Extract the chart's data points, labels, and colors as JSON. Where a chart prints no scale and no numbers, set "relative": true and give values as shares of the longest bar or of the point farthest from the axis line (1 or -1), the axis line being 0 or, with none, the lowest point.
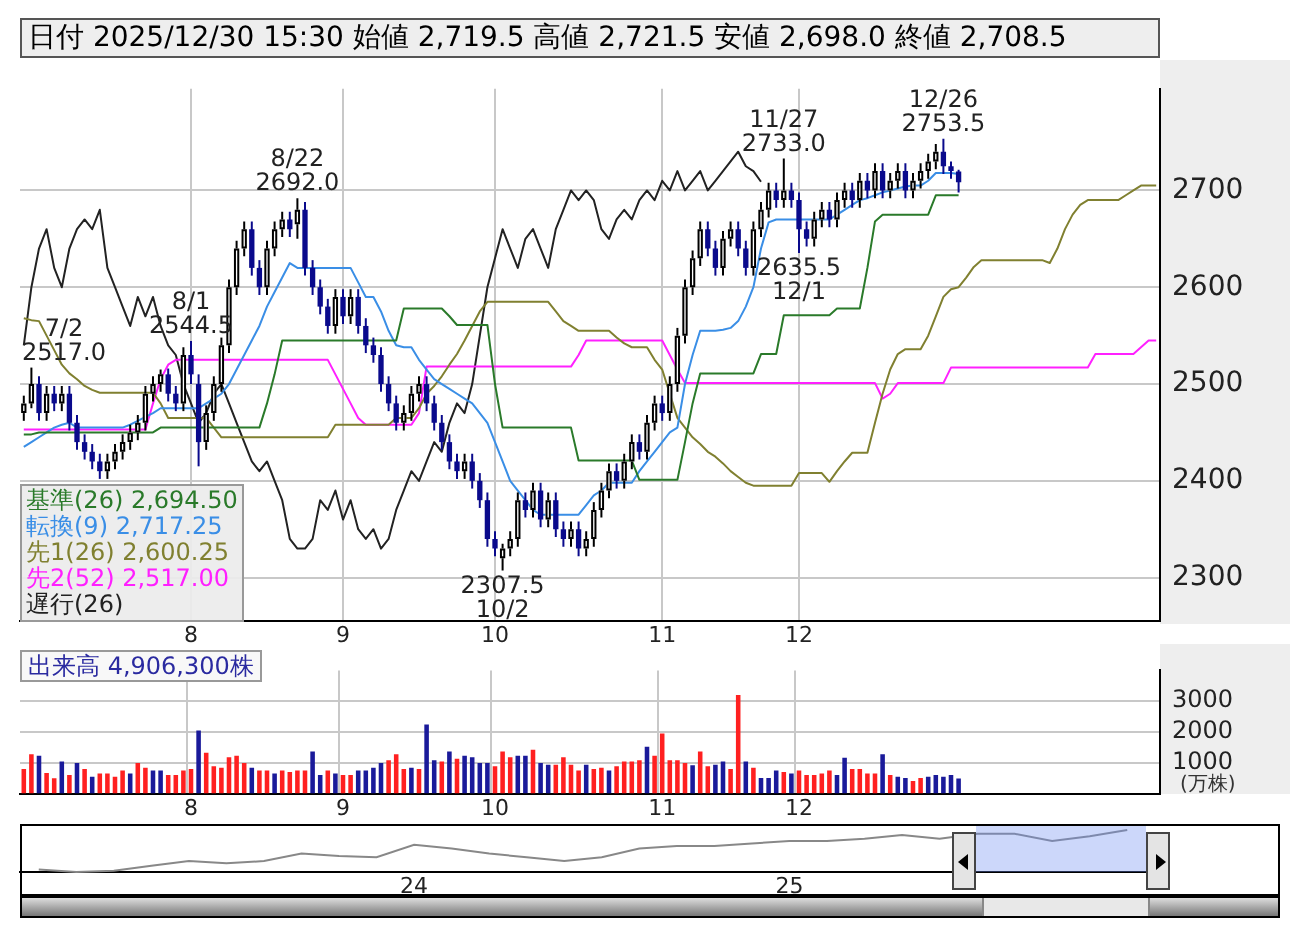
{
  "chart_data": [
    {
      "type": "candlestick",
      "title": "日付 2025/12/30 15:30 始値 2,719.5 高値 2,721.5 安値 2,698.0 終値 2,708.5",
      "categories": [
        null,
        null,
        null,
        null,
        null,
        null,
        null,
        null,
        null,
        null,
        null,
        null,
        null,
        null,
        null,
        null,
        null,
        null,
        null,
        null,
        null,
        null,
        "8",
        null,
        null,
        null,
        null,
        null,
        null,
        null,
        null,
        null,
        null,
        null,
        null,
        null,
        null,
        null,
        null,
        null,
        null,
        null,
        "9",
        null,
        null,
        null,
        null,
        null,
        null,
        null,
        null,
        null,
        null,
        null,
        null,
        null,
        null,
        null,
        null,
        null,
        null,
        null,
        "10",
        null,
        null,
        null,
        null,
        null,
        null,
        null,
        null,
        null,
        null,
        null,
        null,
        null,
        null,
        null,
        null,
        null,
        null,
        null,
        null,
        null,
        "11",
        null,
        null,
        null,
        null,
        null,
        null,
        null,
        null,
        null,
        null,
        null,
        null,
        null,
        null,
        null,
        null,
        null,
        "12",
        null,
        null,
        null,
        null,
        null,
        null,
        null,
        null,
        null,
        null,
        null,
        null,
        null,
        null,
        null,
        null,
        null,
        null,
        null,
        null,
        null,
        null,
        null,
        null,
        null,
        null,
        null,
        null,
        null,
        null,
        null,
        null,
        null,
        null,
        null,
        null,
        null,
        null,
        null,
        null,
        null,
        null,
        null,
        null,
        null,
        null,
        null
      ],
      "colors": [
        "#ffffff",
        "#ffffff",
        "#0a0a8c",
        "#ffffff",
        "#0a0a8c",
        "#ffffff",
        "#0a0a8c",
        "#0a0a8c",
        "#0a0a8c",
        "#0a0a8c",
        "#0a0a8c",
        "#ffffff",
        "#ffffff",
        "#ffffff",
        "#ffffff",
        "#ffffff",
        "#ffffff",
        "#ffffff",
        "#ffffff",
        "#0a0a8c",
        "#0a0a8c",
        "#ffffff",
        "#0a0a8c",
        "#0a0a8c",
        "#ffffff",
        "#ffffff",
        "#ffffff",
        "#ffffff",
        "#ffffff",
        "#ffffff",
        "#0a0a8c",
        "#0a0a8c",
        "#ffffff",
        "#ffffff",
        "#ffffff",
        "#0a0a8c",
        "#ffffff",
        "#0a0a8c",
        "#0a0a8c",
        "#0a0a8c",
        "#0a0a8c",
        "#ffffff",
        "#0a0a8c",
        "#ffffff",
        "#0a0a8c",
        "#0a0a8c",
        "#0a0a8c",
        "#0a0a8c",
        "#0a0a8c",
        "#0a0a8c",
        "#ffffff",
        "#ffffff",
        "#ffffff",
        "#0a0a8c",
        "#0a0a8c",
        "#0a0a8c",
        "#0a0a8c",
        "#0a0a8c",
        "#ffffff",
        "#0a0a8c",
        "#0a0a8c",
        "#0a0a8c",
        "#0a0a8c",
        "#ffffff",
        "#ffffff",
        "#ffffff",
        "#0a0a8c",
        "#ffffff",
        "#0a0a8c",
        "#ffffff",
        "#0a0a8c",
        "#0a0a8c",
        "#ffffff",
        "#0a0a8c",
        "#ffffff",
        "#ffffff",
        "#ffffff",
        "#ffffff",
        "#0a0a8c",
        "#ffffff",
        "#ffffff",
        "#0a0a8c",
        "#ffffff",
        "#ffffff",
        "#0a0a8c",
        "#ffffff",
        "#ffffff",
        "#ffffff",
        "#ffffff",
        "#ffffff",
        "#0a0a8c",
        "#0a0a8c",
        "#ffffff",
        "#ffffff",
        "#0a0a8c",
        "#0a0a8c",
        "#ffffff",
        "#ffffff",
        "#ffffff",
        "#0a0a8c",
        "#ffffff",
        "#0a0a8c",
        "#0a0a8c",
        "#0a0a8c",
        "#ffffff",
        "#ffffff",
        "#0a0a8c",
        "#ffffff",
        "#ffffff",
        "#0a0a8c",
        "#ffffff",
        "#0a0a8c",
        "#ffffff",
        "#0a0a8c",
        "#ffffff",
        "#ffffff",
        "#0a0a8c",
        "#ffffff",
        "#ffffff",
        "#ffffff",
        "#ffffff",
        "#0a0a8c",
        "#0a0a8c",
        "#0a0a8c",
        null,
        null,
        null,
        null,
        null,
        null,
        null,
        null,
        null,
        null,
        null,
        null,
        null,
        null,
        null,
        null,
        null,
        null,
        null,
        null,
        null,
        null,
        null,
        null,
        null,
        null
      ],
      "ohlc": [
        [
          2470,
          2488,
          2462,
          2480
        ],
        [
          2480,
          2517,
          2475,
          2500
        ],
        [
          2500,
          2508,
          2462,
          2470
        ],
        [
          2470,
          2498,
          2462,
          2490
        ],
        [
          2490,
          2498,
          2472,
          2480
        ],
        [
          2480,
          2498,
          2472,
          2490
        ],
        [
          2490,
          2498,
          2452,
          2460
        ],
        [
          2460,
          2468,
          2432,
          2440
        ],
        [
          2440,
          2448,
          2422,
          2430
        ],
        [
          2430,
          2438,
          2412,
          2420
        ],
        [
          2420,
          2428,
          2402,
          2410
        ],
        [
          2410,
          2428,
          2402,
          2420
        ],
        [
          2420,
          2438,
          2412,
          2430
        ],
        [
          2430,
          2448,
          2422,
          2440
        ],
        [
          2440,
          2458,
          2432,
          2450
        ],
        [
          2450,
          2468,
          2442,
          2460
        ],
        [
          2460,
          2498,
          2452,
          2490
        ],
        [
          2490,
          2508,
          2482,
          2500
        ],
        [
          2500,
          2515,
          2492,
          2510
        ],
        [
          2510,
          2516,
          2482,
          2490
        ],
        [
          2490,
          2498,
          2472,
          2480
        ],
        [
          2480,
          2538,
          2472,
          2530
        ],
        [
          2530,
          2544.5,
          2500,
          2510
        ],
        [
          2500,
          2510,
          2415,
          2440
        ],
        [
          2440,
          2478,
          2432,
          2470
        ],
        [
          2470,
          2508,
          2462,
          2500
        ],
        [
          2500,
          2548,
          2492,
          2540
        ],
        [
          2540,
          2608,
          2532,
          2600
        ],
        [
          2600,
          2648,
          2592,
          2640
        ],
        [
          2640,
          2668,
          2632,
          2660
        ],
        [
          2660,
          2668,
          2612,
          2620
        ],
        [
          2620,
          2628,
          2592,
          2600
        ],
        [
          2600,
          2648,
          2592,
          2640
        ],
        [
          2640,
          2668,
          2632,
          2660
        ],
        [
          2660,
          2678,
          2652,
          2670
        ],
        [
          2670,
          2678,
          2652,
          2660
        ],
        [
          2665,
          2692,
          2650,
          2680
        ],
        [
          2680,
          2688,
          2612,
          2620
        ],
        [
          2620,
          2628,
          2592,
          2600
        ],
        [
          2600,
          2608,
          2572,
          2580
        ],
        [
          2580,
          2588,
          2552,
          2560
        ],
        [
          2560,
          2598,
          2552,
          2590
        ],
        [
          2590,
          2598,
          2562,
          2570
        ],
        [
          2570,
          2598,
          2562,
          2590
        ],
        [
          2590,
          2598,
          2552,
          2560
        ],
        [
          2560,
          2568,
          2532,
          2540
        ],
        [
          2540,
          2548,
          2522,
          2530
        ],
        [
          2530,
          2538,
          2492,
          2500
        ],
        [
          2500,
          2508,
          2472,
          2480
        ],
        [
          2480,
          2488,
          2452,
          2460
        ],
        [
          2460,
          2478,
          2452,
          2470
        ],
        [
          2470,
          2498,
          2462,
          2490
        ],
        [
          2490,
          2508,
          2482,
          2500
        ],
        [
          2500,
          2508,
          2472,
          2480
        ],
        [
          2480,
          2488,
          2452,
          2460
        ],
        [
          2460,
          2468,
          2432,
          2440
        ],
        [
          2440,
          2448,
          2412,
          2420
        ],
        [
          2420,
          2428,
          2402,
          2410
        ],
        [
          2410,
          2428,
          2402,
          2420
        ],
        [
          2420,
          2428,
          2392,
          2400
        ],
        [
          2400,
          2408,
          2372,
          2380
        ],
        [
          2380,
          2388,
          2332,
          2340
        ],
        [
          2340,
          2348,
          2322,
          2330
        ],
        [
          2320,
          2335,
          2307.5,
          2330
        ],
        [
          2330,
          2348,
          2322,
          2340
        ],
        [
          2340,
          2388,
          2332,
          2380
        ],
        [
          2380,
          2388,
          2362,
          2370
        ],
        [
          2370,
          2398,
          2362,
          2390
        ],
        [
          2390,
          2398,
          2352,
          2360
        ],
        [
          2360,
          2388,
          2352,
          2380
        ],
        [
          2380,
          2388,
          2342,
          2350
        ],
        [
          2350,
          2358,
          2332,
          2340
        ],
        [
          2340,
          2358,
          2332,
          2350
        ],
        [
          2350,
          2358,
          2322,
          2330
        ],
        [
          2330,
          2348,
          2322,
          2340
        ],
        [
          2340,
          2378,
          2332,
          2370
        ],
        [
          2370,
          2398,
          2362,
          2390
        ],
        [
          2390,
          2418,
          2382,
          2410
        ],
        [
          2410,
          2418,
          2392,
          2400
        ],
        [
          2400,
          2428,
          2392,
          2420
        ],
        [
          2420,
          2448,
          2412,
          2440
        ],
        [
          2440,
          2448,
          2422,
          2430
        ],
        [
          2430,
          2468,
          2422,
          2460
        ],
        [
          2460,
          2488,
          2452,
          2480
        ],
        [
          2480,
          2488,
          2462,
          2470
        ],
        [
          2470,
          2508,
          2462,
          2500
        ],
        [
          2500,
          2558,
          2492,
          2550
        ],
        [
          2550,
          2608,
          2542,
          2600
        ],
        [
          2600,
          2638,
          2592,
          2630
        ],
        [
          2630,
          2668,
          2622,
          2660
        ],
        [
          2660,
          2668,
          2632,
          2640
        ],
        [
          2640,
          2648,
          2612,
          2620
        ],
        [
          2620,
          2658,
          2612,
          2650
        ],
        [
          2650,
          2668,
          2642,
          2660
        ],
        [
          2660,
          2668,
          2632,
          2640
        ],
        [
          2640,
          2648,
          2612,
          2620
        ],
        [
          2620,
          2668,
          2612,
          2660
        ],
        [
          2660,
          2688,
          2652,
          2680
        ],
        [
          2680,
          2708,
          2672,
          2700
        ],
        [
          2700,
          2708,
          2682,
          2690
        ],
        [
          2690,
          2733,
          2682,
          2700
        ],
        [
          2700,
          2708,
          2682,
          2690
        ],
        [
          2690,
          2698,
          2635.5,
          2660
        ],
        [
          2660,
          2668,
          2642,
          2650
        ],
        [
          2650,
          2678,
          2642,
          2670
        ],
        [
          2670,
          2688,
          2662,
          2680
        ],
        [
          2680,
          2688,
          2662,
          2670
        ],
        [
          2670,
          2698,
          2662,
          2690
        ],
        [
          2690,
          2708,
          2682,
          2700
        ],
        [
          2700,
          2708,
          2682,
          2690
        ],
        [
          2690,
          2718,
          2682,
          2710
        ],
        [
          2710,
          2718,
          2692,
          2700
        ],
        [
          2700,
          2728,
          2692,
          2720
        ],
        [
          2720,
          2728,
          2692,
          2700
        ],
        [
          2700,
          2718,
          2692,
          2710
        ],
        [
          2710,
          2728,
          2702,
          2720
        ],
        [
          2720,
          2728,
          2692,
          2700
        ],
        [
          2700,
          2718,
          2692,
          2710
        ],
        [
          2710,
          2728,
          2702,
          2720
        ],
        [
          2720,
          2738,
          2712,
          2730
        ],
        [
          2730,
          2748,
          2722,
          2740
        ],
        [
          2740,
          2753.5,
          2717,
          2725
        ],
        [
          2725,
          2730,
          2712,
          2720
        ],
        [
          2719.5,
          2721.5,
          2698,
          2708.5
        ],
        null,
        null,
        null,
        null,
        null,
        null,
        null,
        null,
        null,
        null,
        null,
        null,
        null,
        null,
        null,
        null,
        null,
        null,
        null,
        null,
        null,
        null,
        null,
        null,
        null,
        null
      ],
      "series": [
        {
          "type": "line",
          "name": "基準(26) 2,694.50",
          "color": "#2a7a2a",
          "values": [
            2448,
            2448,
            2450,
            2450,
            2450,
            2450,
            2450,
            2450,
            2450,
            2450,
            2450,
            2450,
            2450,
            2450,
            2450,
            2450,
            2450,
            2450,
            2455,
            2455,
            2455,
            2455,
            2455,
            2455,
            2455,
            2455,
            2455,
            2455,
            2455,
            2455,
            2455,
            2455,
            2480,
            2510,
            2545,
            2545,
            2545,
            2545,
            2545,
            2545,
            2545,
            2545,
            2545,
            2545,
            2545,
            2545,
            2545,
            2545,
            2545,
            2545,
            2578,
            2578,
            2578,
            2578,
            2578,
            2578,
            2570,
            2561,
            2561,
            2561,
            2561,
            2561,
            2500,
            2455,
            2455,
            2455,
            2455,
            2455,
            2455,
            2455,
            2455,
            2455,
            2455,
            2421,
            2421,
            2421,
            2421,
            2421,
            2421,
            2421,
            2421,
            2401,
            2401,
            2401,
            2401,
            2401,
            2401,
            2440,
            2480,
            2511,
            2511,
            2511,
            2511,
            2511,
            2511,
            2511,
            2511,
            2531,
            2531,
            2531,
            2571,
            2571,
            2571,
            2571,
            2571,
            2571,
            2571,
            2578,
            2578,
            2578,
            2578,
            2620,
            2668,
            2675,
            2675,
            2675,
            2675,
            2675,
            2675,
            2675,
            2695,
            2695,
            2695,
            2695,
            null,
            null,
            null,
            null,
            null,
            null,
            null,
            null,
            null,
            null,
            null,
            null,
            null,
            null,
            null,
            null,
            null,
            null,
            null,
            null,
            null,
            null,
            null,
            null,
            null,
            null
          ]
        },
        {
          "type": "line",
          "name": "転換(9) 2,717.25",
          "color": "#3a8ee6",
          "values": [
            2435,
            2440,
            2445,
            2450,
            2455,
            2458,
            2460,
            2455,
            2455,
            2455,
            2455,
            2455,
            2455,
            2455,
            2458,
            2462,
            2466,
            2470,
            2475,
            2475,
            2475,
            2475,
            2475,
            2475,
            2480,
            2485,
            2490,
            2500,
            2515,
            2530,
            2545,
            2560,
            2580,
            2595,
            2610,
            2625,
            2620,
            2620,
            2620,
            2620,
            2620,
            2620,
            2620,
            2620,
            2605,
            2590,
            2590,
            2575,
            2555,
            2540,
            2538,
            2538,
            2525,
            2515,
            2505,
            2500,
            2495,
            2490,
            2485,
            2480,
            2470,
            2460,
            2440,
            2420,
            2400,
            2390,
            2380,
            2370,
            2365,
            2365,
            2365,
            2365,
            2365,
            2365,
            2375,
            2385,
            2390,
            2398,
            2398,
            2398,
            2398,
            2410,
            2420,
            2430,
            2440,
            2450,
            2455,
            2500,
            2530,
            2555,
            2555,
            2555,
            2556,
            2558,
            2565,
            2580,
            2600,
            2640,
            2667,
            2670,
            2670,
            2670,
            2670,
            2670,
            2670,
            2670,
            2670,
            2675,
            2680,
            2685,
            2690,
            2692,
            2695,
            2698,
            2700,
            2702,
            2704,
            2705,
            2705,
            2710,
            2718,
            2718,
            2718,
            2717,
            null,
            null,
            null,
            null,
            null,
            null,
            null,
            null,
            null,
            null,
            null,
            null,
            null,
            null,
            null,
            null,
            null,
            null,
            null,
            null,
            null,
            null,
            null,
            null,
            null,
            null
          ]
        },
        {
          "type": "line",
          "name": "先1(26) 2,600.25",
          "color": "#808030",
          "values": [
            2568,
            2566,
            2565,
            2550,
            2535,
            2520,
            2511,
            2505,
            2498,
            2494,
            2491,
            2491,
            2491,
            2491,
            2491,
            2491,
            2491,
            2491,
            2480,
            2465,
            2465,
            2465,
            2465,
            2465,
            2465,
            2455,
            2445,
            2445,
            2445,
            2445,
            2445,
            2445,
            2445,
            2445,
            2445,
            2445,
            2445,
            2445,
            2445,
            2445,
            2445,
            2458,
            2458,
            2458,
            2458,
            2458,
            2458,
            2458,
            2458,
            2465,
            2465,
            2465,
            2475,
            2490,
            2498,
            2508,
            2520,
            2531,
            2545,
            2560,
            2575,
            2585,
            2585,
            2585,
            2585,
            2585,
            2585,
            2585,
            2585,
            2585,
            2575,
            2565,
            2560,
            2555,
            2555,
            2555,
            2555,
            2555,
            2548,
            2542,
            2538,
            2538,
            2538,
            2525,
            2515,
            2490,
            2465,
            2455,
            2445,
            2438,
            2430,
            2425,
            2418,
            2410,
            2404,
            2398,
            2395,
            2395,
            2395,
            2395,
            2395,
            2395,
            2408,
            2408,
            2408,
            2408,
            2399,
            2410,
            2420,
            2429,
            2429,
            2429,
            2460,
            2490,
            2515,
            2531,
            2536,
            2536,
            2536,
            2550,
            2570,
            2590,
            2598,
            2600,
            2610,
            2621,
            2628,
            2628,
            2628,
            2628,
            2628,
            2628,
            2628,
            2628,
            2628,
            2625,
            2640,
            2660,
            2675,
            2685,
            2690,
            2690,
            2690,
            2690,
            2690,
            2695,
            2700,
            2705,
            2705,
            2705
          ]
        },
        {
          "type": "line",
          "name": "先2(52) 2,517.00",
          "color": "#ff20ff",
          "values": [
            2453,
            2453,
            2453,
            2453,
            2453,
            2453,
            2453,
            2453,
            2453,
            2453,
            2453,
            2453,
            2453,
            2453,
            2453,
            2453,
            2453,
            2480,
            2505,
            2520,
            2525,
            2525,
            2525,
            2525,
            2525,
            2525,
            2525,
            2525,
            2525,
            2525,
            2525,
            2525,
            2525,
            2525,
            2525,
            2525,
            2525,
            2525,
            2525,
            2525,
            2525,
            2510,
            2495,
            2480,
            2465,
            2458,
            2458,
            2458,
            2458,
            2458,
            2458,
            2458,
            2470,
            2518,
            2518,
            2518,
            2518,
            2518,
            2518,
            2518,
            2518,
            2518,
            2518,
            2518,
            2518,
            2518,
            2518,
            2518,
            2518,
            2518,
            2518,
            2518,
            2518,
            2530,
            2545,
            2545,
            2545,
            2545,
            2545,
            2545,
            2545,
            2545,
            2545,
            2545,
            2545,
            2530,
            2515,
            2501,
            2501,
            2501,
            2501,
            2501,
            2501,
            2501,
            2501,
            2501,
            2501,
            2501,
            2501,
            2501,
            2501,
            2501,
            2501,
            2501,
            2501,
            2501,
            2501,
            2501,
            2501,
            2501,
            2501,
            2501,
            2501,
            2485,
            2490,
            2501,
            2501,
            2501,
            2501,
            2501,
            2501,
            2501,
            2517,
            2517,
            2517,
            2517,
            2517,
            2517,
            2517,
            2517,
            2517,
            2517,
            2517,
            2517,
            2517,
            2517,
            2517,
            2517,
            2517,
            2517,
            2517,
            2531,
            2531,
            2531,
            2531,
            2531,
            2531,
            2538,
            2545,
            2545
          ]
        },
        {
          "type": "line",
          "name": "遅行(26)",
          "color": "#222222",
          "values": [
            2540,
            2600,
            2640,
            2660,
            2620,
            2600,
            2640,
            2660,
            2670,
            2660,
            2680,
            2620,
            2600,
            2580,
            2560,
            2590,
            2570,
            2590,
            2560,
            2540,
            2530,
            2500,
            2480,
            2460,
            2470,
            2490,
            2500,
            2480,
            2460,
            2440,
            2420,
            2410,
            2420,
            2400,
            2380,
            2340,
            2330,
            2330,
            2340,
            2380,
            2370,
            2390,
            2360,
            2380,
            2350,
            2340,
            2350,
            2330,
            2340,
            2370,
            2390,
            2410,
            2400,
            2420,
            2440,
            2430,
            2460,
            2480,
            2470,
            2500,
            2550,
            2600,
            2630,
            2660,
            2640,
            2620,
            2650,
            2660,
            2640,
            2620,
            2660,
            2680,
            2700,
            2690,
            2700,
            2690,
            2660,
            2650,
            2670,
            2680,
            2670,
            2690,
            2700,
            2690,
            2710,
            2700,
            2720,
            2700,
            2710,
            2720,
            2700,
            2710,
            2720,
            2730,
            2740,
            2725,
            2720,
            2709,
            null,
            null,
            null,
            null,
            null,
            null,
            null,
            null,
            null,
            null,
            null,
            null,
            null,
            null,
            null,
            null,
            null,
            null,
            null,
            null,
            null,
            null,
            null,
            null,
            null,
            null,
            null,
            null,
            null,
            null,
            null,
            null,
            null,
            null,
            null,
            null,
            null,
            null,
            null,
            null,
            null,
            null,
            null,
            null,
            null,
            null,
            null,
            null,
            null,
            null,
            null,
            null
          ]
        }
      ],
      "ylim": [
        2255,
        2805
      ],
      "yticks": [
        2300,
        2400,
        2500,
        2600,
        2700
      ],
      "grid": true,
      "legend": "bottom left",
      "annotations": [
        {
          "text": "7/2\n2517.0",
          "y": 2517
        },
        {
          "text": "8/1\n2544.5",
          "y": 2544.5
        },
        {
          "text": "8/22\n2692.0",
          "y": 2692
        },
        {
          "text": "2307.5\n10/2",
          "y": 2307.5
        },
        {
          "text": "11/27\n2733.0",
          "y": 2733
        },
        {
          "text": "2635.5\n12/1",
          "y": 2635.5
        },
        {
          "text": "12/26\n2753.5",
          "y": 2753.5
        }
      ]
    },
    {
      "type": "bar",
      "title": "出来高 4,906,300株",
      "ylabel": "(万株)",
      "categories": [
        null,
        null,
        null,
        null,
        null,
        null,
        null,
        null,
        null,
        null,
        null,
        null,
        null,
        null,
        null,
        null,
        null,
        null,
        null,
        null,
        null,
        null,
        "8",
        null,
        null,
        null,
        null,
        null,
        null,
        null,
        null,
        null,
        null,
        null,
        null,
        null,
        null,
        null,
        null,
        null,
        null,
        null,
        "9",
        null,
        null,
        null,
        null,
        null,
        null,
        null,
        null,
        null,
        null,
        null,
        null,
        null,
        null,
        null,
        null,
        null,
        null,
        null,
        "10",
        null,
        null,
        null,
        null,
        null,
        null,
        null,
        null,
        null,
        null,
        null,
        null,
        null,
        null,
        null,
        null,
        null,
        null,
        null,
        null,
        null,
        "11",
        null,
        null,
        null,
        null,
        null,
        null,
        null,
        null,
        null,
        null,
        null,
        null,
        null,
        null,
        null,
        null,
        null,
        "12",
        null,
        null,
        null,
        null,
        null,
        null,
        null,
        null,
        null,
        null,
        null,
        null,
        null,
        null,
        null,
        null,
        null,
        null,
        null,
        null,
        null,
        null,
        null,
        null,
        null,
        null,
        null,
        null,
        null,
        null,
        null,
        null,
        null,
        null,
        null,
        null,
        null,
        null,
        null,
        null,
        null,
        null,
        null,
        null,
        null,
        null,
        null
      ],
      "values": [
        800,
        1280,
        1230,
        670,
        500,
        1040,
        600,
        990,
        800,
        550,
        650,
        650,
        550,
        750,
        650,
        990,
        840,
        750,
        750,
        600,
        600,
        750,
        800,
        2050,
        1330,
        890,
        840,
        1180,
        1230,
        990,
        840,
        750,
        750,
        650,
        750,
        700,
        750,
        750,
        1370,
        600,
        750,
        650,
        600,
        600,
        750,
        750,
        840,
        990,
        1080,
        1280,
        800,
        840,
        800,
        2240,
        1080,
        1040,
        1370,
        1130,
        1230,
        1180,
        990,
        990,
        890,
        1370,
        1180,
        1230,
        1230,
        1420,
        990,
        940,
        940,
        1180,
        940,
        750,
        940,
        800,
        840,
        750,
        890,
        1040,
        1040,
        1080,
        1520,
        1230,
        1950,
        1080,
        1080,
        990,
        920,
        1370,
        890,
        940,
        1040,
        800,
        3200,
        1040,
        840,
        510,
        510,
        750,
        700,
        650,
        750,
        600,
        600,
        650,
        750,
        600,
        1160,
        800,
        800,
        650,
        650,
        1280,
        600,
        550,
        510,
        410,
        510,
        550,
        600,
        550,
        600,
        490,
        null,
        null,
        null,
        null,
        null,
        null,
        null,
        null,
        null,
        null,
        null,
        null,
        null,
        null,
        null,
        null,
        null,
        null,
        null,
        null,
        null,
        null,
        null,
        null,
        null,
        null
      ],
      "colors": [
        "#ff2020",
        "#ff2020",
        "#1a1a9a",
        "#ff2020",
        "#ff2020",
        "#1a1a9a",
        "#ff2020",
        "#1a1a9a",
        "#ff2020",
        "#1a1a9a",
        "#ff2020",
        "#ff2020",
        "#ff2020",
        "#ff2020",
        "#1a1a9a",
        "#ff2020",
        "#ff2020",
        "#1a1a9a",
        "#1a1a9a",
        "#ff2020",
        "#ff2020",
        "#ff2020",
        "#ff2020",
        "#1a1a9a",
        "#ff2020",
        "#ff2020",
        "#ff2020",
        "#ff2020",
        "#ff2020",
        "#ff2020",
        "#1a1a9a",
        "#ff2020",
        "#ff2020",
        "#1a1a9a",
        "#ff2020",
        "#ff2020",
        "#ff2020",
        "#ff2020",
        "#1a1a9a",
        "#1a1a9a",
        "#ff2020",
        "#1a1a9a",
        "#ff2020",
        "#ff2020",
        "#1a1a9a",
        "#1a1a9a",
        "#1a1a9a",
        "#1a1a9a",
        "#ff2020",
        "#ff2020",
        "#ff2020",
        "#1a1a9a",
        "#ff2020",
        "#1a1a9a",
        "#1a1a9a",
        "#ff2020",
        "#1a1a9a",
        "#ff2020",
        "#1a1a9a",
        "#1a1a9a",
        "#1a1a9a",
        "#1a1a9a",
        "#ff2020",
        "#ff2020",
        "#ff2020",
        "#1a1a9a",
        "#1a1a9a",
        "#ff2020",
        "#1a1a9a",
        "#1a1a9a",
        "#ff2020",
        "#ff2020",
        "#ff2020",
        "#ff2020",
        "#1a1a9a",
        "#ff2020",
        "#ff2020",
        "#1a1a9a",
        "#ff2020",
        "#ff2020",
        "#ff2020",
        "#ff2020",
        "#1a1a9a",
        "#ff2020",
        "#ff2020",
        "#ff2020",
        "#ff2020",
        "#ff2020",
        "#1a1a9a",
        "#ff2020",
        "#ff2020",
        "#1a1a9a",
        "#1a1a9a",
        "#ff2020",
        "#ff2020",
        "#1a1a9a",
        "#ff2020",
        "#1a1a9a",
        "#1a1a9a",
        "#1a1a9a",
        "#ff2020",
        "#1a1a9a",
        "#ff2020",
        "#ff2020",
        "#ff2020",
        "#ff2020",
        "#ff2020",
        "#1a1a9a",
        "#1a1a9a",
        "#ff2020",
        "#ff2020",
        "#ff2020",
        "#ff2020",
        "#1a1a9a",
        "#ff2020",
        "#1a1a9a",
        "#1a1a9a",
        "#ff2020",
        "#ff2020",
        "#1a1a9a",
        "#1a1a9a",
        "#1a1a9a",
        "#1a1a9a",
        "#1a1a9a",
        null,
        null,
        null,
        null,
        null,
        null,
        null,
        null,
        null,
        null,
        null,
        null,
        null,
        null,
        null,
        null,
        null,
        null,
        null,
        null,
        null,
        null,
        null,
        null,
        null,
        null
      ],
      "ylim": [
        0,
        4000
      ],
      "yticks": [
        1000,
        2000,
        3000
      ],
      "grid": true
    },
    {
      "type": "line",
      "relative": true,
      "tick_labels": "x",
      "categories": [
        null,
        null,
        null,
        null,
        null,
        null,
        null,
        null,
        null,
        null,
        "24",
        null,
        null,
        null,
        null,
        null,
        null,
        null,
        null,
        null,
        "25",
        null,
        null,
        null,
        null,
        null,
        null,
        null,
        null,
        null
      ],
      "color": "#888888",
      "values": [
        0.06,
        0,
        0.03,
        0.15,
        0.26,
        0.21,
        0.26,
        0.44,
        0.38,
        0.35,
        0.65,
        0.56,
        0.44,
        0.35,
        0.26,
        0.35,
        0.56,
        0.62,
        0.62,
        0.68,
        0.74,
        0.74,
        0.79,
        0.88,
        0.79,
        0.91,
        0.91,
        0.74,
        0.85,
        1
      ]
    }
  ]
}
